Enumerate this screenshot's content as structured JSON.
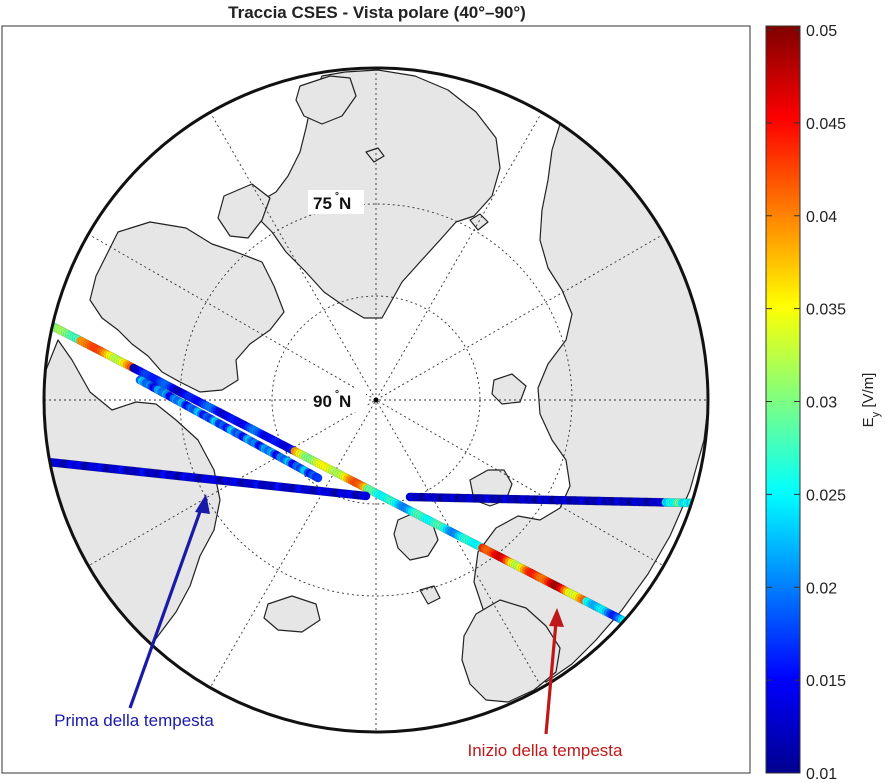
{
  "map": {
    "title": "Traccia CSES - Vista polare (40°–90°)",
    "projection": "polar stereographic (north)",
    "extent_lat": [
      40,
      90
    ],
    "graticule_labels": [
      {
        "text": "75",
        "suffix": " N"
      },
      {
        "text": "90",
        "suffix": " N"
      }
    ],
    "land_color": "#e6e6e6",
    "ocean_color": "#ffffff"
  },
  "colorbar": {
    "label_main": "E",
    "label_sub": "y",
    "label_unit": " [V/m]",
    "colormap": "jet",
    "range": [
      0.01,
      0.05
    ],
    "ticks": [
      "0.01",
      "0.015",
      "0.02",
      "0.025",
      "0.03",
      "0.035",
      "0.04",
      "0.045",
      "0.05"
    ]
  },
  "annotations": [
    {
      "text": "Prima della tempesta",
      "color": "#1a1aa8"
    },
    {
      "text": "Inizio della tempesta",
      "color": "#c01818"
    }
  ]
}
